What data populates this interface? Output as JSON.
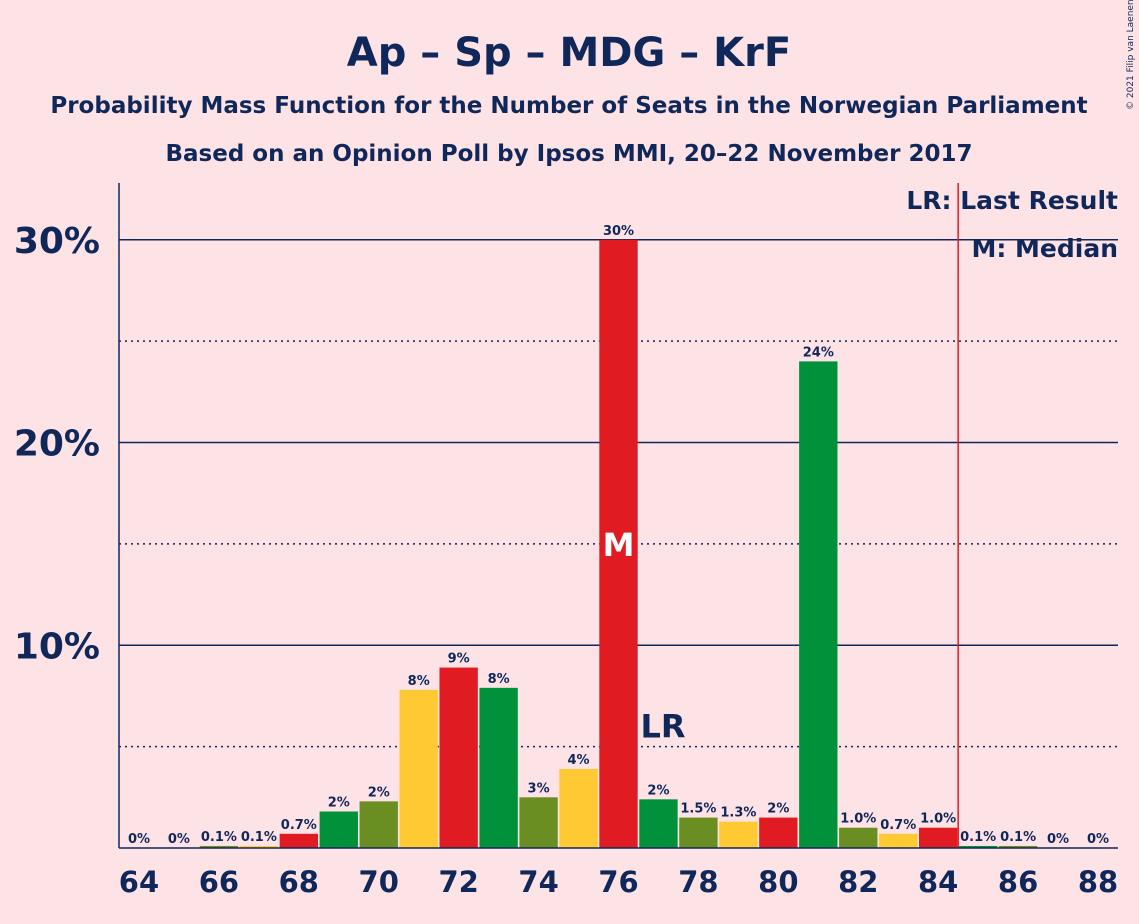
{
  "chart_data": {
    "type": "bar",
    "title": "Ap – Sp – MDG – KrF",
    "subtitle1": "Probability Mass Function for the Number of Seats in the Norwegian Parliament",
    "subtitle2": "Based on an Opinion Poll by Ipsos MMI, 20–22 November 2017",
    "copyright": "© 2021 Filip van Laenen",
    "xlabel": "",
    "ylabel": "",
    "ylim": [
      0,
      32.8
    ],
    "xlim": [
      63.5,
      88.5
    ],
    "yticks": [
      {
        "value": 10,
        "label": "10%"
      },
      {
        "value": 20,
        "label": "20%"
      },
      {
        "value": 30,
        "label": "30%"
      }
    ],
    "ygrid_dotted": [
      5,
      15,
      25
    ],
    "xticks": [
      64,
      66,
      68,
      70,
      72,
      74,
      76,
      78,
      80,
      82,
      84,
      86,
      88
    ],
    "x": [
      64,
      65,
      66,
      67,
      68,
      69,
      70,
      71,
      72,
      73,
      74,
      75,
      76,
      77,
      78,
      79,
      80,
      81,
      82,
      83,
      84,
      85,
      86,
      87,
      88
    ],
    "values": [
      0,
      0,
      0.1,
      0.1,
      0.7,
      1.8,
      2.3,
      7.8,
      8.9,
      7.9,
      2.5,
      3.9,
      30.0,
      2.4,
      1.5,
      1.3,
      1.5,
      24.0,
      1.0,
      0.7,
      1.0,
      0.1,
      0.1,
      0,
      0
    ],
    "labels": [
      "0%",
      "0%",
      "0.1%",
      "0.1%",
      "0.7%",
      "2%",
      "2%",
      "8%",
      "9%",
      "8%",
      "3%",
      "4%",
      "30%",
      "2%",
      "1.5%",
      "1.3%",
      "2%",
      "24%",
      "1.0%",
      "0.7%",
      "1.0%",
      "0.1%",
      "0.1%",
      "0%",
      "0%"
    ],
    "colors": [
      "#E01B22",
      "#00913A",
      "#6B8E23",
      "#FFC933",
      "#E01B22",
      "#00913A",
      "#6B8E23",
      "#FFC933",
      "#E01B22",
      "#00913A",
      "#6B8E23",
      "#FFC933",
      "#E01B22",
      "#00913A",
      "#6B8E23",
      "#FFC933",
      "#E01B22",
      "#00913A",
      "#6B8E23",
      "#FFC933",
      "#E01B22",
      "#00913A",
      "#6B8E23",
      "#FFC933",
      "#E01B22"
    ],
    "median": {
      "x": 76,
      "label": "M"
    },
    "last_result": {
      "x": 85,
      "label": "LR"
    },
    "legend": {
      "placement": "top-right",
      "lines": [
        "LR: Last Result",
        "M: Median"
      ]
    },
    "palette": {
      "background": "#FDE3E6",
      "text": "#10275A",
      "lr_line": "#E01B22"
    }
  }
}
